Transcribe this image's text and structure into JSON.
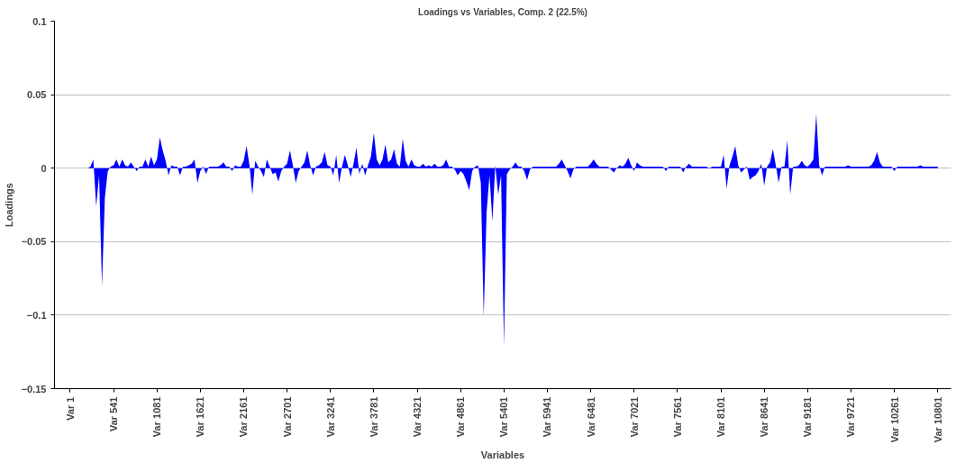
{
  "chart_data": {
    "type": "area",
    "title": "Loadings vs Variables, Comp. 2 (22.5%)",
    "xlabel": "Variables",
    "ylabel": "Loadings",
    "ylim": [
      -0.15,
      0.1
    ],
    "yticks": [
      -0.15,
      -0.1,
      -0.05,
      0,
      0.05,
      0.1
    ],
    "grid": "y",
    "categories": [
      "Var 1",
      null,
      null,
      null,
      null,
      null,
      null,
      null,
      null,
      null,
      null,
      null,
      null,
      null,
      null,
      "Var 541",
      null,
      null,
      null,
      null,
      null,
      null,
      null,
      null,
      null,
      null,
      null,
      null,
      null,
      null,
      "Var 1081",
      null,
      null,
      null,
      null,
      null,
      null,
      null,
      null,
      null,
      null,
      null,
      null,
      null,
      null,
      "Var 1621",
      null,
      null,
      null,
      null,
      null,
      null,
      null,
      null,
      null,
      null,
      null,
      null,
      null,
      null,
      "Var 2161",
      null,
      null,
      null,
      null,
      null,
      null,
      null,
      null,
      null,
      null,
      null,
      null,
      null,
      null,
      "Var 2701",
      null,
      null,
      null,
      null,
      null,
      null,
      null,
      null,
      null,
      null,
      null,
      null,
      null,
      null,
      "Var 3241",
      null,
      null,
      null,
      null,
      null,
      null,
      null,
      null,
      null,
      null,
      null,
      null,
      null,
      null,
      "Var 3781",
      null,
      null,
      null,
      null,
      null,
      null,
      null,
      null,
      null,
      null,
      null,
      null,
      null,
      null,
      "Var 4321",
      null,
      null,
      null,
      null,
      null,
      null,
      null,
      null,
      null,
      null,
      null,
      null,
      null,
      null,
      "Var 4861",
      null,
      null,
      null,
      null,
      null,
      null,
      null,
      null,
      null,
      null,
      null,
      null,
      null,
      null,
      "Var 5401",
      null,
      null,
      null,
      null,
      null,
      null,
      null,
      null,
      null,
      null,
      null,
      null,
      null,
      null,
      "Var 5941",
      null,
      null,
      null,
      null,
      null,
      null,
      null,
      null,
      null,
      null,
      null,
      null,
      null,
      null,
      "Var 6481",
      null,
      null,
      null,
      null,
      null,
      null,
      null,
      null,
      null,
      null,
      null,
      null,
      null,
      null,
      "Var 7021",
      null,
      null,
      null,
      null,
      null,
      null,
      null,
      null,
      null,
      null,
      null,
      null,
      null,
      null,
      "Var 7561",
      null,
      null,
      null,
      null,
      null,
      null,
      null,
      null,
      null,
      null,
      null,
      null,
      null,
      null,
      "Var 8101",
      null,
      null,
      null,
      null,
      null,
      null,
      null,
      null,
      null,
      null,
      null,
      null,
      null,
      null,
      "Var 8641",
      null,
      null,
      null,
      null,
      null,
      null,
      null,
      null,
      null,
      null,
      null,
      null,
      null,
      null,
      "Var 9181",
      null,
      null,
      null,
      null,
      null,
      null,
      null,
      null,
      null,
      null,
      null,
      null,
      null,
      null,
      "Var 9721",
      null,
      null,
      null,
      null,
      null,
      null,
      null,
      null,
      null,
      null,
      null,
      null,
      null,
      null,
      "Var 10261",
      null,
      null,
      null,
      null,
      null,
      null,
      null,
      null,
      null,
      null,
      null,
      null,
      null,
      null,
      "Var 10801"
    ],
    "series": [
      {
        "color": "#0000ff",
        "values": [
          null,
          null,
          null,
          null,
          null,
          null,
          0,
          0.001,
          0.006,
          -0.026,
          -0.005,
          -0.08,
          -0.02,
          -0.002,
          0.001,
          0.002,
          0.006,
          0.001,
          0.006,
          0.002,
          0.001,
          0.004,
          0.001,
          -0.002,
          0.001,
          0.001,
          0.006,
          0.001,
          0.008,
          0.002,
          0.006,
          0.021,
          0.012,
          0.005,
          -0.005,
          0.002,
          0.001,
          0.001,
          -0.005,
          0.001,
          0.001,
          0.002,
          0.003,
          0.006,
          -0.01,
          -0.002,
          0.001,
          -0.004,
          0.001,
          0.001,
          0.001,
          0.001,
          0.002,
          0.004,
          0.001,
          0.001,
          -0.002,
          0.002,
          0.001,
          0.001,
          0.005,
          0.015,
          0.002,
          -0.018,
          0.005,
          0.001,
          -0.002,
          -0.006,
          0.006,
          0.001,
          -0.004,
          -0.003,
          -0.009,
          -0.002,
          0.001,
          0.003,
          0.012,
          0.002,
          -0.01,
          -0.002,
          0.001,
          0.004,
          0.012,
          0.002,
          -0.005,
          0.001,
          0.002,
          0.004,
          0.011,
          0.002,
          0.001,
          -0.005,
          0.009,
          -0.01,
          0.001,
          0.009,
          0.002,
          -0.006,
          0.003,
          0.014,
          -0.004,
          0.003,
          -0.005,
          0.002,
          0.008,
          0.024,
          0.006,
          0.002,
          0.006,
          0.016,
          0.004,
          0.006,
          0.013,
          0.003,
          0.001,
          0.02,
          0.005,
          0.001,
          0.006,
          0.002,
          0.001,
          0.001,
          0.003,
          0.001,
          0.002,
          0.001,
          0.003,
          0.001,
          0.001,
          0.002,
          0.006,
          0.001,
          0.001,
          -0.001,
          -0.005,
          -0.002,
          -0.004,
          -0.009,
          -0.015,
          -0.002,
          0.001,
          0.002,
          -0.01,
          -0.101,
          -0.03,
          -0.005,
          -0.036,
          0.002,
          -0.018,
          -0.005,
          -0.121,
          -0.004,
          -0.001,
          0.001,
          0.004,
          0.001,
          0.001,
          -0.002,
          -0.008,
          -0.001,
          0.001,
          0.001,
          0.001,
          0.001,
          0.001,
          0.001,
          0.001,
          0.001,
          0.001,
          0.003,
          0.006,
          0.002,
          -0.002,
          -0.007,
          -0.001,
          0.001,
          0.001,
          0.001,
          0.001,
          0.001,
          0.003,
          0.006,
          0.003,
          0.001,
          0.001,
          0.001,
          0.001,
          -0.001,
          -0.003,
          0,
          0.002,
          0.001,
          0.003,
          0.007,
          0.002,
          -0.002,
          0.004,
          0.002,
          0.001,
          0.001,
          0.001,
          0.001,
          0.001,
          0.001,
          0.001,
          0.001,
          -0.002,
          0.001,
          0.001,
          0.001,
          0.001,
          0.001,
          -0.003,
          0.001,
          0.003,
          0.001,
          0.001,
          0.001,
          0.001,
          0.001,
          0.001,
          0,
          0.001,
          0.001,
          0.001,
          0.001,
          0.009,
          -0.014,
          0.002,
          0.008,
          0.015,
          0.002,
          -0.003,
          -0.001,
          0.001,
          -0.008,
          -0.006,
          -0.005,
          -0.002,
          0.003,
          -0.012,
          0.001,
          0.004,
          0.013,
          0.002,
          -0.01,
          0.001,
          0.001,
          0.019,
          -0.018,
          0.001,
          0.001,
          0.002,
          0.005,
          0.002,
          0.001,
          0.003,
          0.006,
          0.037,
          0.002,
          -0.005,
          0.001,
          0.001,
          0.001,
          0.001,
          0.001,
          0.001,
          0.001,
          0.001,
          0.002,
          0.001,
          0.001,
          0.001,
          0.001,
          0.001,
          0.001,
          0.001,
          0.002,
          0.005,
          0.011,
          0.004,
          0.001,
          0.001,
          0.001,
          0.001,
          -0.002,
          0.001,
          0.001,
          0.001,
          0.001,
          0.001,
          0.001,
          0.001,
          0.001,
          0.002,
          0.001,
          0.001,
          0.001,
          0.001,
          0.001,
          0.001
        ]
      }
    ]
  }
}
